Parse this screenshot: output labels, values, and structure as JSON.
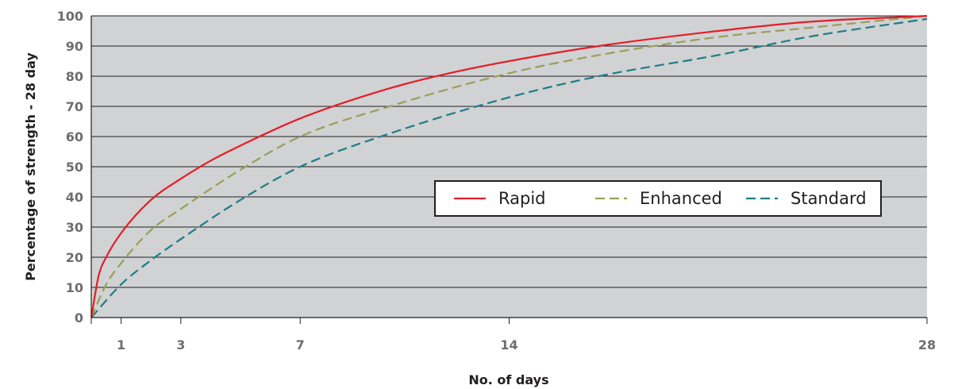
{
  "chart_data": {
    "type": "line",
    "title": "",
    "xlabel": "No. of days",
    "ylabel": "Percentage of strength - 28 day",
    "xlim": [
      0,
      28
    ],
    "ylim": [
      0,
      100
    ],
    "x_ticks": [
      1,
      3,
      7,
      14,
      28
    ],
    "y_ticks": [
      0,
      10,
      20,
      30,
      40,
      50,
      60,
      70,
      80,
      90,
      100
    ],
    "grid": "horizontal",
    "background": "#d1d2d4",
    "legend_position": "center-right",
    "series": [
      {
        "name": "Rapid",
        "color": "#e41e26",
        "dash": "solid",
        "x": [
          0,
          0.25,
          0.5,
          1,
          2,
          3,
          4,
          5,
          7,
          10,
          12,
          14,
          17,
          21,
          24,
          28
        ],
        "y": [
          0,
          14,
          20,
          28,
          39,
          46,
          52,
          57,
          66,
          76,
          81,
          85,
          90,
          95,
          98,
          100
        ]
      },
      {
        "name": "Enhanced",
        "color": "#9b9e58",
        "dash": "dashed",
        "x": [
          0,
          0.5,
          1,
          2,
          3,
          5,
          7,
          10,
          14,
          17,
          21,
          24,
          28
        ],
        "y": [
          0,
          11,
          18,
          29,
          36,
          49,
          60,
          70,
          81,
          87,
          93,
          96,
          100
        ]
      },
      {
        "name": "Standard",
        "color": "#1d7d86",
        "dash": "dashed",
        "x": [
          0,
          1,
          2,
          3,
          5,
          7,
          10,
          14,
          17,
          21,
          24,
          28
        ],
        "y": [
          0,
          11,
          19,
          26,
          39,
          50,
          61,
          73,
          80,
          87,
          93,
          99
        ]
      }
    ]
  }
}
